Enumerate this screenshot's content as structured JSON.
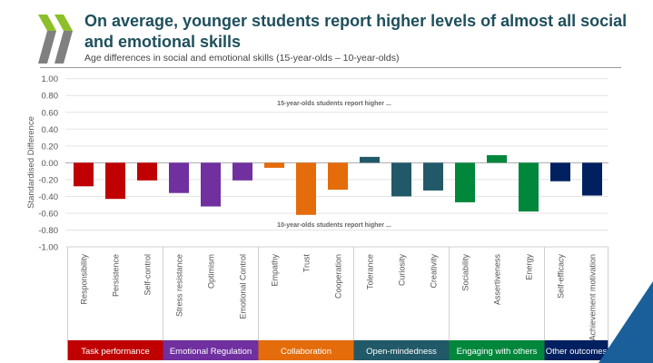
{
  "header": {
    "title": "On average, younger students report higher levels of almost all social and emotional skills",
    "subtitle": "Age differences in social and emotional skills (15-year-olds – 10-year-olds)"
  },
  "logo": {
    "name": "oecd-chevrons-logo",
    "colors": [
      "#8cbf2a",
      "#808080"
    ]
  },
  "chart_data": {
    "type": "bar",
    "ylabel": "Standardised Difference",
    "ylim": [
      -1.0,
      1.0
    ],
    "yticks": [
      "1.00",
      "0.80",
      "0.60",
      "0.40",
      "0.20",
      "0.00",
      "-0.20",
      "-0.40",
      "-0.60",
      "-0.80",
      "-1.00"
    ],
    "grid": true,
    "annotations": {
      "top": "15-year-olds students report higher ...",
      "bottom": "10-year-olds students report higher ..."
    },
    "groups": [
      {
        "name": "Task performance",
        "color": "#c00000",
        "categories": [
          "Responsibility",
          "Persistence",
          "Self-control"
        ],
        "values": [
          -0.28,
          -0.43,
          -0.21
        ]
      },
      {
        "name": "Emotional Regulation",
        "color": "#7030a0",
        "categories": [
          "Stress resistance",
          "Optimism",
          "Emotional Control"
        ],
        "values": [
          -0.36,
          -0.52,
          -0.21
        ]
      },
      {
        "name": "Collaboration",
        "color": "#e46c0a",
        "categories": [
          "Empathy",
          "Trust",
          "Cooperation"
        ],
        "values": [
          -0.06,
          -0.62,
          -0.32
        ]
      },
      {
        "name": "Open-mindedness",
        "color": "#215968",
        "categories": [
          "Tolerance",
          "Curiosity",
          "Creativity"
        ],
        "values": [
          0.07,
          -0.4,
          -0.33
        ]
      },
      {
        "name": "Engaging with others",
        "color": "#00873c",
        "categories": [
          "Sociability",
          "Assertiveness",
          "Energy"
        ],
        "values": [
          -0.47,
          0.09,
          -0.58
        ]
      },
      {
        "name": "Other outcomes",
        "color": "#002060",
        "categories": [
          "Self-efficacy",
          "Achievement motivation"
        ],
        "values": [
          -0.22,
          -0.39
        ]
      }
    ]
  }
}
